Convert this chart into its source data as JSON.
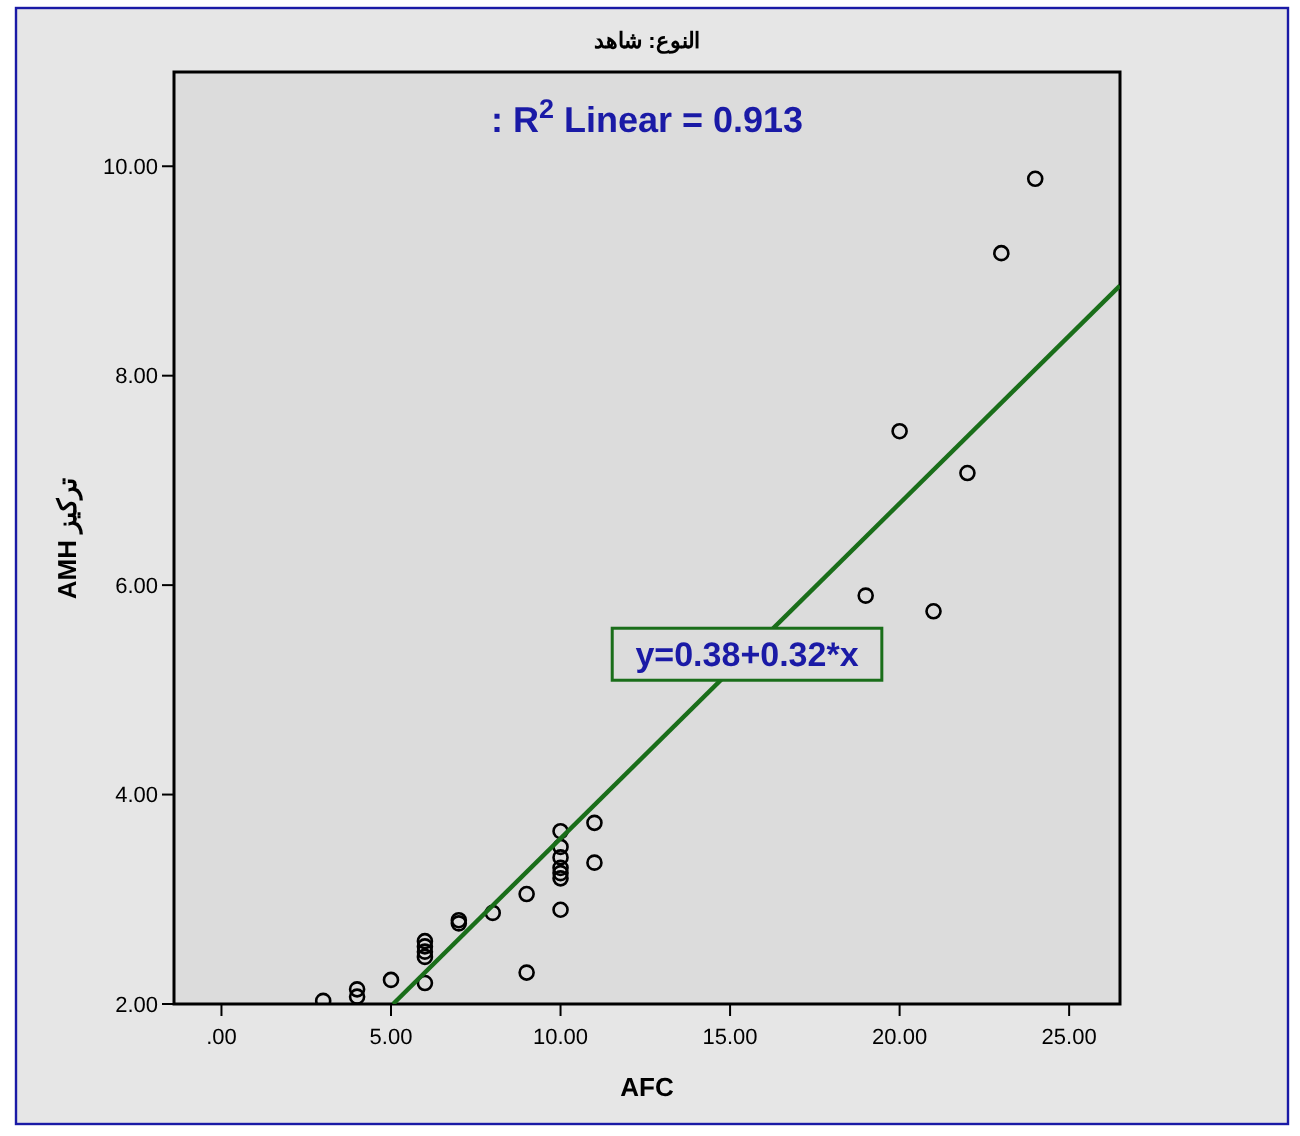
{
  "chart_data": {
    "type": "scatter",
    "title": "النوع: شاهد",
    "xlabel": "AFC",
    "ylabel": "تركيز AMH",
    "annotations": [
      ": R$^{2}$ Linear = 0.913",
      {
        "text": "y=0.38+0.32*x",
        "x": 15.5,
        "y": 5.34
      }
    ],
    "xlim": [
      -1.4,
      26.5
    ],
    "xticks": [
      {
        "value": 0,
        "label": ".00"
      },
      {
        "value": 5,
        "label": "5.00"
      },
      {
        "value": 10,
        "label": "10.00"
      },
      {
        "value": 15,
        "label": "15.00"
      },
      {
        "value": 20,
        "label": "20.00"
      },
      {
        "value": 25,
        "label": "25.00"
      }
    ],
    "ylim": [
      2,
      10.9
    ],
    "yticks": [
      {
        "value": 2,
        "label": "2.00"
      },
      {
        "value": 4,
        "label": "4.00"
      },
      {
        "value": 6,
        "label": "6.00"
      },
      {
        "value": 8,
        "label": "8.00"
      },
      {
        "value": 10,
        "label": "10.00"
      }
    ],
    "grid": false,
    "series": [
      {
        "color": "#000000",
        "marker": "circle",
        "x": [
          3,
          4,
          4,
          5,
          6,
          6,
          6,
          6,
          6,
          7,
          7,
          8,
          9,
          9,
          10,
          10,
          10,
          10,
          10,
          10,
          10,
          11,
          11,
          19,
          20,
          21,
          22,
          23,
          24
        ],
        "values": [
          2.03,
          2.07,
          2.14,
          2.23,
          2.2,
          2.45,
          2.5,
          2.55,
          2.6,
          2.77,
          2.8,
          2.87,
          3.05,
          2.3,
          2.9,
          3.2,
          3.25,
          3.3,
          3.4,
          3.5,
          3.65,
          3.35,
          3.73,
          5.9,
          7.47,
          5.75,
          7.07,
          9.17,
          9.88
        ]
      },
      {
        "type": "line",
        "color": "#1a6e1a",
        "line_style": "solid",
        "marker": "none",
        "x": [
          5.06,
          26.5
        ],
        "values": [
          2.0,
          8.86
        ]
      }
    ]
  }
}
